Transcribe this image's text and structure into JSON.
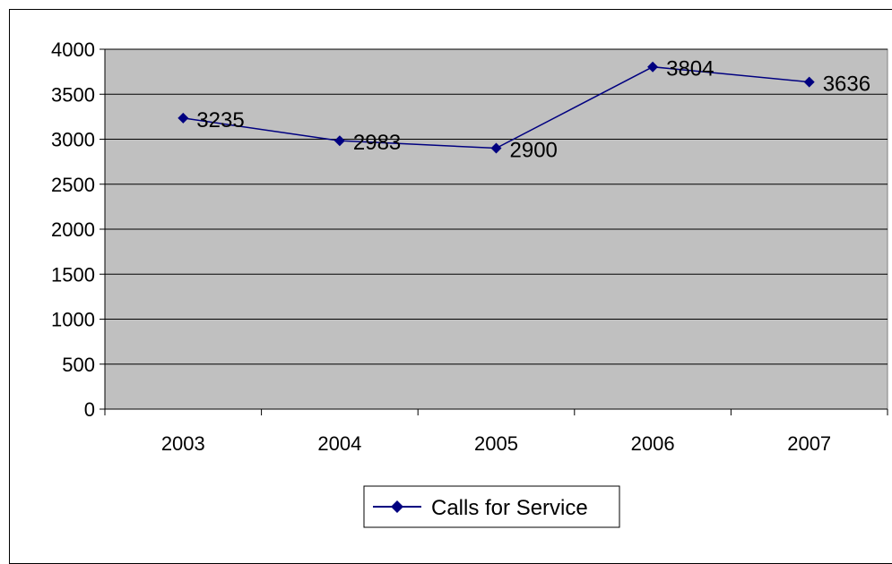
{
  "chart_data": {
    "type": "line",
    "categories": [
      "2003",
      "2004",
      "2005",
      "2006",
      "2007"
    ],
    "series": [
      {
        "name": "Calls for Service",
        "values": [
          3235,
          2983,
          2900,
          3804,
          3636
        ],
        "color": "#000080",
        "marker": "diamond"
      }
    ],
    "ylim": [
      0,
      4000
    ],
    "yticks": [
      0,
      500,
      1000,
      1500,
      2000,
      2500,
      3000,
      3500,
      4000
    ],
    "grid": true,
    "plot_background": "#c0c0c0",
    "legend": {
      "position": "bottom",
      "label": "Calls for Service"
    },
    "data_labels": true
  }
}
